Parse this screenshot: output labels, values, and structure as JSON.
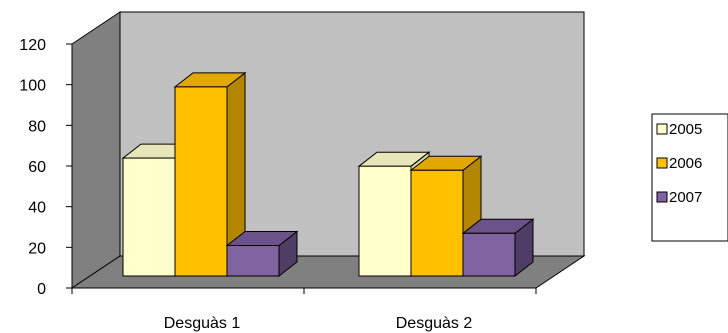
{
  "chart_data": {
    "type": "bar",
    "style": "3d-clustered-column",
    "categories": [
      "Desguàs 1",
      "Desguàs 2"
    ],
    "series": [
      {
        "name": "2005",
        "values": [
          58,
          54
        ],
        "color": "#FFFFCC",
        "side_color": "#D9D9A6",
        "top_color": "#E6E6B8"
      },
      {
        "name": "2006",
        "values": [
          93,
          52
        ],
        "color": "#FFC000",
        "side_color": "#B38600",
        "top_color": "#E0A800"
      },
      {
        "name": "2007",
        "values": [
          15,
          21
        ],
        "color": "#8064A2",
        "side_color": "#4F3D66",
        "top_color": "#6B5288"
      }
    ],
    "ylim": [
      0,
      120
    ],
    "yticks": [
      0,
      20,
      40,
      60,
      80,
      100,
      120
    ],
    "title": "",
    "xlabel": "",
    "ylabel": "",
    "legend": "right",
    "grid": false,
    "wall_color": "#C0C0C0",
    "floor_color": "#808080",
    "side_wall_color": "#808080"
  }
}
